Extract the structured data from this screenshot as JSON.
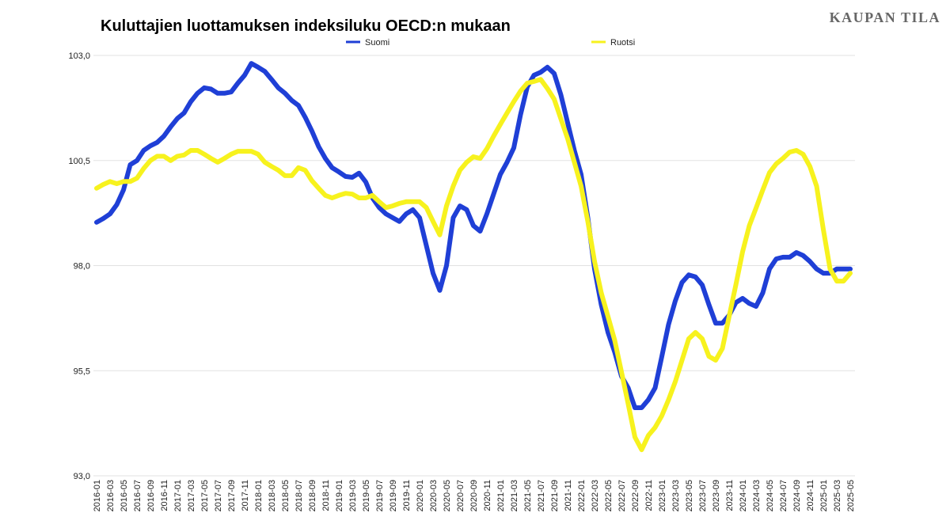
{
  "chart_data": {
    "type": "line",
    "title": "Kuluttajien luottamuksen indeksiluku OECD:n mukaan",
    "brand": "KAUPAN TILA",
    "categories": [
      "2016-01",
      null,
      "2016-03",
      null,
      "2016-05",
      null,
      "2016-07",
      null,
      "2016-09",
      null,
      "2016-11",
      null,
      "2017-01",
      null,
      "2017-03",
      null,
      "2017-05",
      null,
      "2017-07",
      null,
      "2017-09",
      null,
      "2017-11",
      null,
      "2018-01",
      null,
      "2018-03",
      null,
      "2018-05",
      null,
      "2018-07",
      null,
      "2018-09",
      null,
      "2018-11",
      null,
      "2019-01",
      null,
      "2019-03",
      null,
      "2019-05",
      null,
      "2019-07",
      null,
      "2019-09",
      null,
      "2019-11",
      null,
      "2020-01",
      null,
      "2020-03",
      null,
      "2020-05",
      null,
      "2020-07",
      null,
      "2020-09",
      null,
      "2020-11",
      null,
      "2021-01",
      null,
      "2021-03",
      null,
      "2021-05",
      null,
      "2021-07",
      null,
      "2021-09",
      null,
      "2021-11",
      null,
      "2022-01",
      null,
      "2022-03",
      null,
      "2022-05",
      null,
      "2022-07",
      null,
      "2022-09",
      null,
      "2022-11",
      null,
      "2023-01",
      null,
      "2023-03",
      null,
      "2023-05",
      null,
      "2023-07",
      null,
      "2023-09",
      null,
      "2023-11",
      null,
      "2024-01",
      null,
      "2024-03",
      null,
      "2024-05",
      null,
      "2024-07",
      null,
      "2024-09",
      null,
      "2024-11",
      null,
      "2025-01",
      null,
      "2025-03",
      null,
      "2025-05"
    ],
    "series": [
      {
        "name": "Suomi",
        "color": "#1f3fd6",
        "values": [
          99.03,
          99.12,
          99.23,
          99.45,
          99.8,
          100.4,
          100.5,
          100.74,
          100.85,
          100.93,
          101.08,
          101.3,
          101.5,
          101.63,
          101.9,
          102.1,
          102.23,
          102.2,
          102.1,
          102.1,
          102.13,
          102.34,
          102.53,
          102.81,
          102.72,
          102.62,
          102.43,
          102.23,
          102.1,
          101.93,
          101.81,
          101.53,
          101.2,
          100.83,
          100.55,
          100.33,
          100.23,
          100.12,
          100.1,
          100.2,
          99.99,
          99.61,
          99.38,
          99.23,
          99.14,
          99.05,
          99.23,
          99.33,
          99.14,
          98.48,
          97.82,
          97.41,
          98.0,
          99.14,
          99.42,
          99.33,
          98.95,
          98.82,
          99.23,
          99.7,
          100.17,
          100.46,
          100.8,
          101.59,
          102.25,
          102.53,
          102.6,
          102.72,
          102.57,
          102.06,
          101.4,
          100.74,
          100.17,
          99.14,
          97.92,
          97.07,
          96.41,
          95.94,
          95.37,
          95.09,
          94.62,
          94.62,
          94.81,
          95.09,
          95.84,
          96.6,
          97.16,
          97.6,
          97.78,
          97.73,
          97.54,
          97.07,
          96.63,
          96.63,
          96.82,
          97.12,
          97.22,
          97.1,
          97.03,
          97.35,
          97.92,
          98.16,
          98.2,
          98.2,
          98.31,
          98.24,
          98.1,
          97.92,
          97.82,
          97.82,
          97.92,
          97.92,
          97.92
        ]
      },
      {
        "name": "Ruotsi",
        "color": "#f7f21e",
        "values": [
          99.84,
          99.93,
          100.0,
          99.95,
          100.0,
          100.0,
          100.08,
          100.31,
          100.5,
          100.6,
          100.6,
          100.5,
          100.6,
          100.63,
          100.74,
          100.74,
          100.65,
          100.55,
          100.46,
          100.55,
          100.65,
          100.72,
          100.72,
          100.72,
          100.65,
          100.46,
          100.36,
          100.27,
          100.14,
          100.14,
          100.33,
          100.27,
          100.02,
          99.84,
          99.67,
          99.61,
          99.67,
          99.72,
          99.7,
          99.61,
          99.61,
          99.67,
          99.52,
          99.38,
          99.42,
          99.48,
          99.52,
          99.52,
          99.52,
          99.38,
          99.05,
          98.73,
          99.42,
          99.89,
          100.27,
          100.46,
          100.59,
          100.55,
          100.78,
          101.08,
          101.36,
          101.63,
          101.9,
          102.15,
          102.34,
          102.38,
          102.43,
          102.21,
          101.96,
          101.49,
          101.02,
          100.46,
          99.89,
          99.05,
          98.1,
          97.35,
          96.79,
          96.22,
          95.47,
          94.71,
          93.92,
          93.62,
          93.96,
          94.15,
          94.43,
          94.81,
          95.24,
          95.75,
          96.26,
          96.41,
          96.26,
          95.84,
          95.75,
          96.03,
          96.79,
          97.54,
          98.33,
          98.95,
          99.37,
          99.8,
          100.21,
          100.42,
          100.55,
          100.7,
          100.74,
          100.65,
          100.36,
          99.89,
          98.86,
          97.92,
          97.63,
          97.63,
          97.82
        ]
      }
    ],
    "ylim": [
      93,
      103
    ],
    "yticks": [
      {
        "value": 93,
        "label": "93,0"
      },
      {
        "value": 95.5,
        "label": "95,5"
      },
      {
        "value": 98,
        "label": "98,0"
      },
      {
        "value": 100.5,
        "label": "100,5"
      },
      {
        "value": 103,
        "label": "103,0"
      }
    ],
    "grid": true
  }
}
